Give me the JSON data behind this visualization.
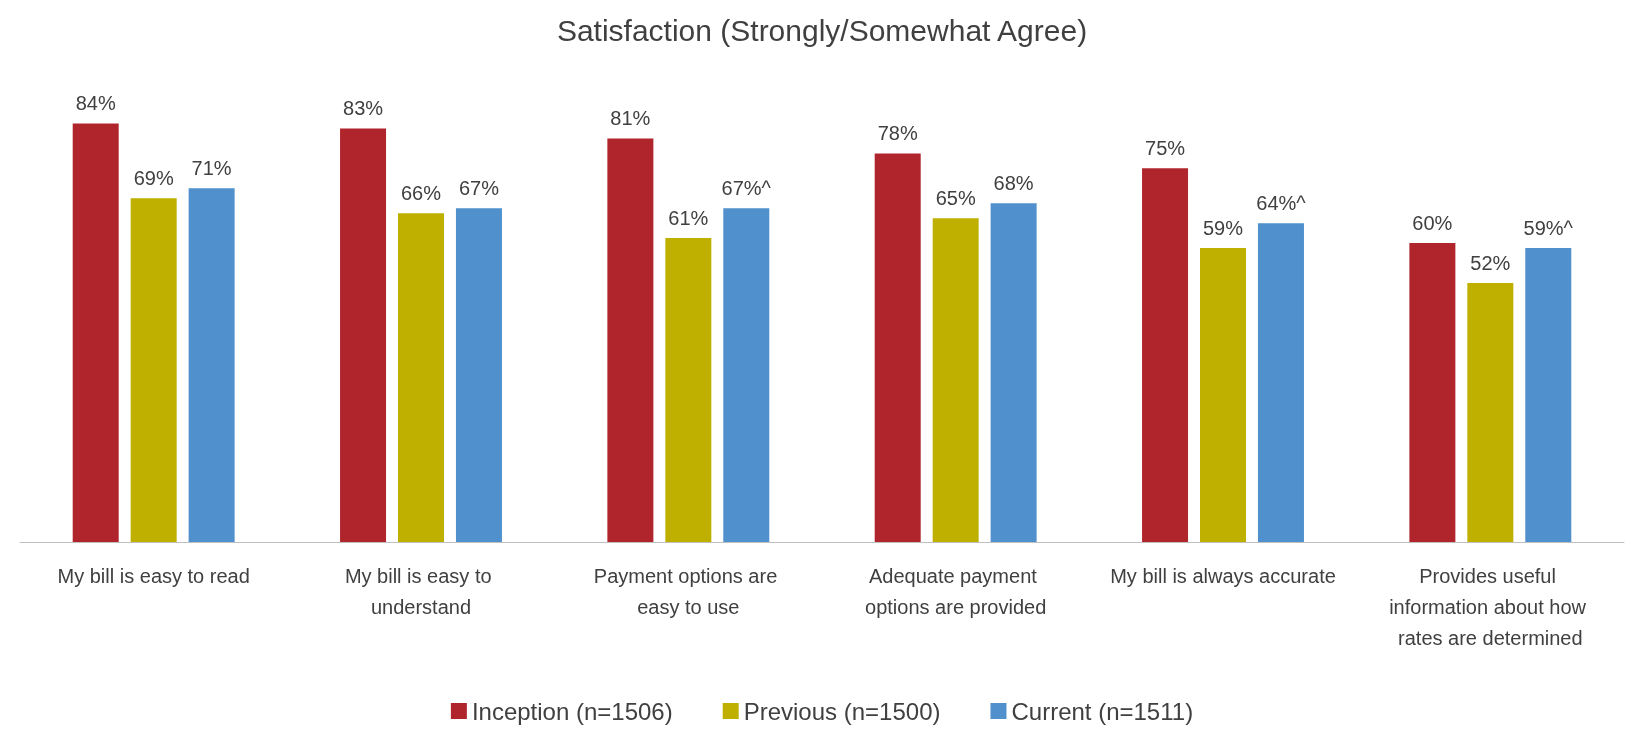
{
  "chart_data": {
    "type": "bar",
    "title": "Satisfaction (Strongly/Somewhat Agree)",
    "categories": [
      "My bill is easy to read",
      "My bill is easy to understand",
      "Payment options are easy to use",
      "Adequate payment options are provided",
      "My bill is always accurate",
      "Provides useful information about how rates are determined"
    ],
    "series": [
      {
        "name": "Inception (n=1506)",
        "color": "#b0252b",
        "values": [
          84,
          83,
          81,
          78,
          75,
          60
        ],
        "value_labels": [
          "84%",
          "83%",
          "81%",
          "78%",
          "75%",
          "60%"
        ]
      },
      {
        "name": "Previous (n=1500)",
        "color": "#bfb000",
        "values": [
          69,
          66,
          61,
          65,
          59,
          52
        ],
        "value_labels": [
          "69%",
          "66%",
          "61%",
          "65%",
          "59%",
          "52%"
        ]
      },
      {
        "name": "Current (n=1511)",
        "color": "#4f90cd",
        "values": [
          71,
          67,
          67,
          68,
          64,
          59
        ],
        "value_labels": [
          "71%",
          "67%",
          "67%^",
          "68%",
          "64%^",
          "59%^"
        ]
      }
    ],
    "legend": "bottom"
  }
}
